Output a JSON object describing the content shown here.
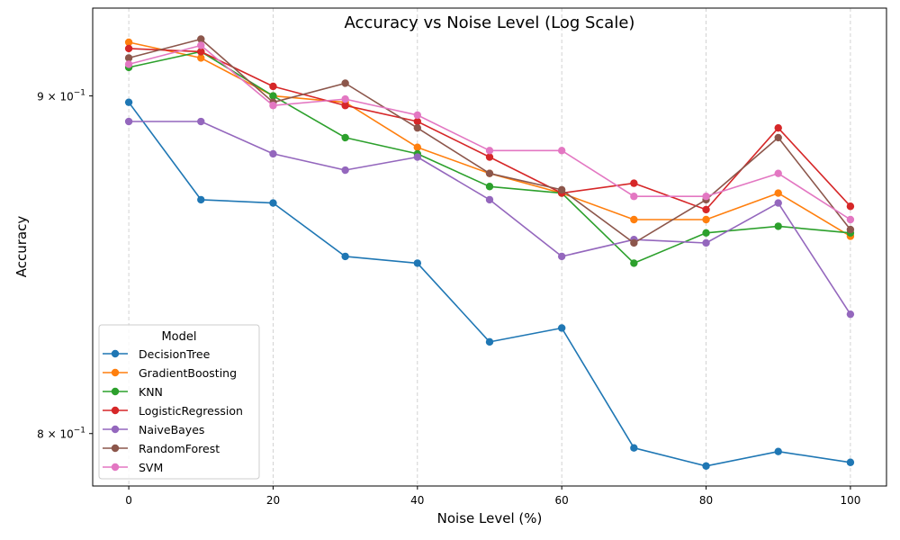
{
  "chart_data": {
    "type": "line",
    "title": "Accuracy vs Noise Level (Log Scale)",
    "xlabel": "Noise Level (%)",
    "ylabel": "Accuracy",
    "yscale": "log",
    "xlim": [
      -5,
      105
    ],
    "ylim": [
      0.7855,
      0.928
    ],
    "grid": "vertical dashed",
    "x": [
      0,
      10,
      20,
      30,
      40,
      50,
      60,
      70,
      80,
      90,
      100
    ],
    "x_ticks": [
      0,
      20,
      40,
      60,
      80,
      100
    ],
    "x_tick_labels": [
      "0",
      "20",
      "40",
      "60",
      "80",
      "100"
    ],
    "y_ticks": [
      0.9,
      0.8
    ],
    "y_tick_labels": [
      {
        "base": "9 × 10",
        "exp": "−1"
      },
      {
        "base": "8 × 10",
        "exp": "−1"
      }
    ],
    "legend": {
      "title": "Model",
      "placement": "lower-left"
    },
    "series": [
      {
        "name": "DecisionTree",
        "color": "#1f77b4",
        "values": [
          0.898,
          0.868,
          0.867,
          0.851,
          0.849,
          0.826,
          0.83,
          0.796,
          0.791,
          0.795,
          0.792
        ]
      },
      {
        "name": "GradientBoosting",
        "color": "#ff7f0e",
        "values": [
          0.917,
          0.912,
          0.9,
          0.898,
          0.884,
          0.876,
          0.87,
          0.862,
          0.862,
          0.87,
          0.857
        ]
      },
      {
        "name": "KNN",
        "color": "#2ca02c",
        "values": [
          0.909,
          0.914,
          0.9,
          0.887,
          0.882,
          0.872,
          0.87,
          0.849,
          0.858,
          0.86,
          0.858
        ]
      },
      {
        "name": "LogisticRegression",
        "color": "#d62728",
        "values": [
          0.915,
          0.914,
          0.903,
          0.897,
          0.892,
          0.881,
          0.87,
          0.873,
          0.865,
          0.89,
          0.866
        ]
      },
      {
        "name": "NaiveBayes",
        "color": "#9467bd",
        "values": [
          0.892,
          0.892,
          0.882,
          0.877,
          0.881,
          0.868,
          0.851,
          0.856,
          0.855,
          0.867,
          0.834
        ]
      },
      {
        "name": "RandomForest",
        "color": "#8c564b",
        "values": [
          0.912,
          0.918,
          0.898,
          0.904,
          0.89,
          0.876,
          0.871,
          0.855,
          0.868,
          0.887,
          0.859
        ]
      },
      {
        "name": "SVM",
        "color": "#e377c2",
        "values": [
          0.91,
          0.916,
          0.897,
          0.899,
          0.894,
          0.883,
          0.883,
          0.869,
          0.869,
          0.876,
          0.862
        ]
      }
    ]
  }
}
